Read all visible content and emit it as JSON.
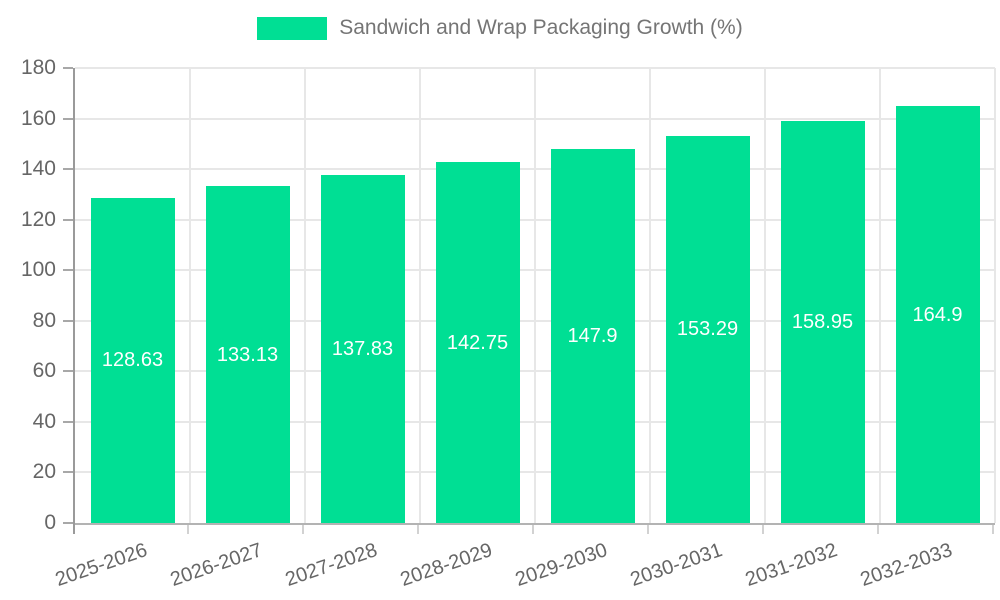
{
  "chart_data": {
    "type": "bar",
    "title": "Sandwich and Wrap Packaging Growth (%)",
    "categories": [
      "2025-2026",
      "2026-2027",
      "2027-2028",
      "2028-2029",
      "2029-2030",
      "2030-2031",
      "2031-2032",
      "2032-2033"
    ],
    "values": [
      128.63,
      133.13,
      137.83,
      142.75,
      147.9,
      153.29,
      158.95,
      164.9
    ],
    "value_labels": [
      "128.63",
      "133.13",
      "137.83",
      "142.75",
      "147.9",
      "153.29",
      "158.95",
      "164.9"
    ],
    "xlabel": "",
    "ylabel": "",
    "ylim": [
      0,
      180
    ],
    "yticks": [
      0,
      20,
      40,
      60,
      80,
      100,
      120,
      140,
      160,
      180
    ],
    "grid": true,
    "legend_position": "top-center",
    "colors": {
      "bar": "#00DF94",
      "value_label": "#ffffff",
      "axis_text": "#666666",
      "legend_text": "#757575",
      "gridline": "#e7e7e7",
      "axis_line": "#9a9a9a"
    }
  }
}
